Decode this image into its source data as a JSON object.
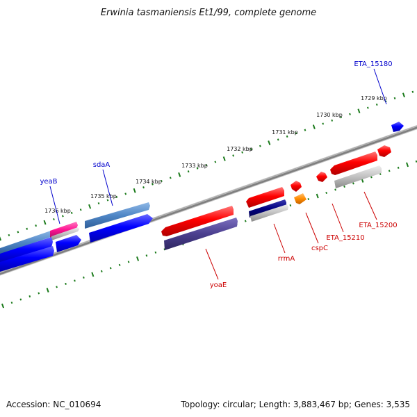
{
  "title": "Erwinia tasmaniensis Et1/99, complete genome",
  "footer": {
    "accession": "Accession: NC_010694",
    "topology": "Topology: circular; Length: 3,883,467 bp; Genes: 3,535"
  },
  "kbp_labels": [
    "1736 kbp",
    "1735 kbp",
    "1734 kbp",
    "1733 kbp",
    "1732 kbp",
    "1731 kbp",
    "1730 kbp",
    "1729 kbp"
  ],
  "gene_labels": {
    "yeaB": "yeaB",
    "sdaA": "sdaA",
    "ETA_15180": "ETA_15180",
    "yoaE": "yoaE",
    "rrmA": "rrmA",
    "cspC": "cspC",
    "ETA_15210": "ETA_15210",
    "ETA_15200": "ETA_15200"
  },
  "colors": {
    "backbone": "#7f7f7f",
    "tick": "#1a7a1a",
    "blue": "#0000ff",
    "red": "#ff0000",
    "steel": "#4f86c6",
    "magenta": "#ff1493",
    "purple": "#4b3f8f",
    "navy": "#000080",
    "orange": "#ff8c00",
    "gray": "#c0c0c0"
  }
}
